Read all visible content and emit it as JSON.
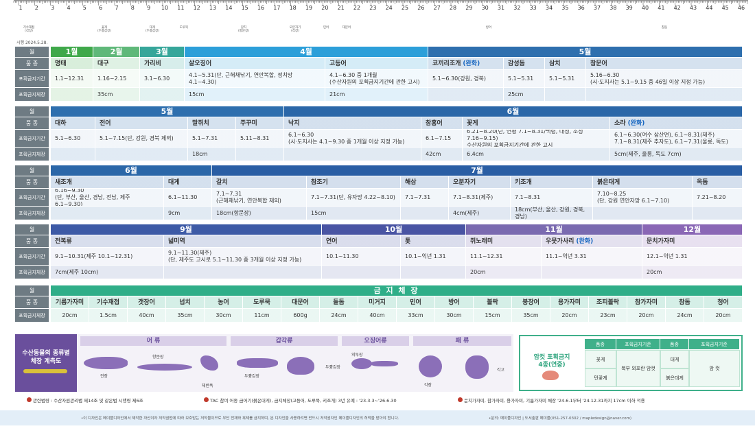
{
  "issued": "시행 2024.5.28.",
  "ruler": {
    "numbers": [
      1,
      2,
      3,
      4,
      5,
      6,
      7,
      8,
      9,
      10,
      11,
      12,
      13,
      14,
      15,
      16,
      17,
      18,
      19,
      20,
      21,
      22,
      23,
      24,
      25,
      26,
      27,
      28,
      29,
      30,
      31,
      32,
      33,
      34,
      35,
      36,
      37,
      38,
      39,
      40,
      41,
      42,
      43,
      44,
      45,
      46
    ],
    "notes": [
      "기수재접\n(각장)",
      "꽃게\n(두흉갑장)",
      "대게\n(두흉갑장)",
      "도루묵",
      "갈치\n(항문장)",
      "오분자기\n(각장)",
      "민어",
      "대문어",
      "방어",
      "참돔"
    ]
  },
  "row_labels": [
    "월",
    "품 종",
    "포획금지기간",
    "포획금지체장"
  ],
  "sections": [
    {
      "months": [
        {
          "label": "1월",
          "span": 1,
          "color": "#3fa84a"
        },
        {
          "label": "2월",
          "span": 1,
          "color": "#5fb879"
        },
        {
          "label": "3월",
          "span": 1,
          "color": "#36a69a"
        },
        {
          "label": "4월",
          "span": 2,
          "color": "#2c9fd9"
        },
        {
          "label": "5월",
          "span": 4,
          "color": "#2e6fae"
        }
      ],
      "columns": [
        {
          "name": "명태",
          "period": "1.1~12.31"
        },
        {
          "name": "대구",
          "period": "1.16~2.15",
          "size": "35cm"
        },
        {
          "name": "가리비",
          "period": "3.1~6.30"
        },
        {
          "name": "살오징어",
          "period": "4.1~5.31(단, 근해채낚기, 연안복합, 정치망 4.1~4.30)",
          "size": "15cm"
        },
        {
          "name": "고등어",
          "period": "4.1~6.30 중 1개월\n(수산자원의 포획금지기간에 관한 고시)",
          "size": "21cm"
        },
        {
          "name": "코끼리조개",
          "note": "(완화)",
          "period": "5.1~6.30(강원, 경북)"
        },
        {
          "name": "감성돔",
          "period": "5.1~5.31",
          "size": "25cm"
        },
        {
          "name": "삼치",
          "period": "5.1~5.31"
        },
        {
          "name": "참문어",
          "period": "5.16~6.30\n(시·도지사는 5.1~9.15 중 46일 이상 지정 가능)"
        }
      ]
    },
    {
      "months": [
        {
          "label": "5월",
          "span": 4,
          "color": "#2e6fae"
        },
        {
          "label": "6월",
          "span": 4,
          "color": "#2b67a8"
        }
      ],
      "columns": [
        {
          "name": "대하",
          "period": "5.1~6.30"
        },
        {
          "name": "전어",
          "period": "5.1~7.15(단, 강원, 경북 제외)"
        },
        {
          "name": "말쥐치",
          "period": "5.1~7.31",
          "size": "18cm"
        },
        {
          "name": "주꾸미",
          "period": "5.11~8.31"
        },
        {
          "name": "낙지",
          "period": "6.1~6.30\n(시·도지사는 4.1~9.30 중 1개월 이상 지정 가능)"
        },
        {
          "name": "참홍어",
          "period": "6.1~7.15",
          "size": "42cm"
        },
        {
          "name": "꽃게",
          "period": "6.21~8.20(단, 연평 7.1~8.31/백령, 대청, 소청 7.16~9.15)\n수산자원의 포획금지기간에 관한 고시",
          "size": "6.4cm"
        },
        {
          "name": "소라",
          "note": "(완화)",
          "period": "6.1~6.30(여수 삼산면), 6.1~8.31(제주)\n7.1~8.31(제주 추자도), 6.1~7.31(울릉, 독도)",
          "size": "5cm(제주, 울릉, 독도 7cm)"
        }
      ]
    },
    {
      "months": [
        {
          "label": "6월",
          "span": 2,
          "color": "#2b67a8"
        },
        {
          "label": "7월",
          "span": 7,
          "color": "#2a5ea4"
        }
      ],
      "columns": [
        {
          "name": "새조개",
          "period": "6.16~9.30\n(단, 부산, 울산, 경남, 전남, 제주 6.1~9.30)"
        },
        {
          "name": "대게",
          "period": "6.1~11.30",
          "size": "9cm"
        },
        {
          "name": "갈치",
          "period": "7.1~7.31\n(근해채낚기, 연안복합 제외)",
          "size": "18cm(항문장)"
        },
        {
          "name": "참조기",
          "period": "7.1~7.31(단, 유자망 4.22~8.10)",
          "size": "15cm"
        },
        {
          "name": "해삼",
          "period": "7.1~7.31"
        },
        {
          "name": "오분자기",
          "period": "7.1~8.31(제주)",
          "size": "4cm(제주)"
        },
        {
          "name": "키조개",
          "period": "7.1~8.31",
          "size": "18cm(부산, 울산, 강원, 경북, 경남)"
        },
        {
          "name": "붉은대게",
          "period": "7.10~8.25\n(단, 강원 연안자망 6.1~7.10)"
        },
        {
          "name": "옥돔",
          "period": "7.21~8.20"
        }
      ]
    },
    {
      "months": [
        {
          "label": "9월",
          "span": 2,
          "color": "#3d5aa6"
        },
        {
          "label": "10월",
          "span": 2,
          "color": "#4954a3"
        },
        {
          "label": "11월",
          "span": 2,
          "color": "#7a6ab0"
        },
        {
          "label": "12월",
          "span": 1,
          "color": "#8a67b5"
        }
      ],
      "columns": [
        {
          "name": "전복류",
          "period": "9.1~10.31(제주 10.1~12.31)",
          "size": "7cm(제주 10cm)"
        },
        {
          "name": "넓미역",
          "period": "9.1~11.30(제주)\n(단, 제주도 고시로 5.1~11.30 중 3개월 이상 지정 가능)"
        },
        {
          "name": "연어",
          "period": "10.1~11.30"
        },
        {
          "name": "톳",
          "period": "10.1~익년 1.31"
        },
        {
          "name": "쥐노래미",
          "period": "11.1~12.31",
          "size": "20cm"
        },
        {
          "name": "우뭇가사리",
          "note": "(완화)",
          "period": "11.1~익년 3.31"
        },
        {
          "name": "문치가자미",
          "period": "12.1~익년 1.31",
          "size": "20cm"
        }
      ]
    }
  ],
  "size_table": {
    "title": "금 지 체 장",
    "color": "#2fae88",
    "columns": [
      {
        "name": "기름가자미",
        "size": "20cm"
      },
      {
        "name": "기수재접",
        "size": "1.5cm"
      },
      {
        "name": "갯장어",
        "size": "40cm"
      },
      {
        "name": "넙치",
        "size": "35cm"
      },
      {
        "name": "농어",
        "size": "30cm"
      },
      {
        "name": "도루묵",
        "size": "11cm"
      },
      {
        "name": "대문어",
        "size": "600g"
      },
      {
        "name": "돌돔",
        "size": "24cm"
      },
      {
        "name": "미거지",
        "size": "40cm"
      },
      {
        "name": "민어",
        "size": "33cm"
      },
      {
        "name": "방어",
        "size": "30cm"
      },
      {
        "name": "볼락",
        "size": "15cm"
      },
      {
        "name": "붕장어",
        "size": "35cm"
      },
      {
        "name": "용가자미",
        "size": "20cm"
      },
      {
        "name": "조피볼락",
        "size": "23cm"
      },
      {
        "name": "참가자미",
        "size": "20cm"
      },
      {
        "name": "참돔",
        "size": "24cm"
      },
      {
        "name": "청어",
        "size": "20cm"
      }
    ]
  },
  "measure": {
    "title": "수산동물의 종류별\n체장 계측도",
    "groups": [
      "어 류",
      "갑각류",
      "오징어류",
      "패 류"
    ],
    "labels": [
      "전장",
      "항문장",
      "체반폭",
      "두흉갑장",
      "두흉갑장",
      "외투장",
      "각장",
      "각고"
    ]
  },
  "female_ban": {
    "title": "암컷 포획금지\n4종(연중)",
    "headers": [
      "품종",
      "포획금지기준",
      "품종",
      "포획금지기준"
    ],
    "left_species": [
      "꽃게",
      "민꽃게"
    ],
    "left_rule": "복부 외포란 암컷",
    "right_species": [
      "대게",
      "붉은대게"
    ],
    "right_rule": "암 컷"
  },
  "notes": [
    "관련법령 : 수산자원관리법 제14조 및 같은법 시행령 제6조",
    "TAC 참여 어종 금어기(붉은대게), 금지체장(고등어, 도루묵, 키조개) 3년 유예 : '23.3.3~'26.6.30",
    "문치가자미, 참가자미, 용가자미, 기름가자미 체장 '24.6.1부터 '24.12.31까지 17cm 이하 적용"
  ],
  "footer": [
    "•이 디자인은 메이플디자인에서 제작한 자산이자 저작권법에 따라 보호받는 저작물이므로 무단 전재와 복제를 금지하며, 본 디자인을 사용하려면 반드시 저작권자인 메이플디자인의 허락을 받아야 합니다.",
    "•문의: 메이플디자인 | 도서출판 메이플(051-257-0302 / mapledesign@naver.com)"
  ]
}
